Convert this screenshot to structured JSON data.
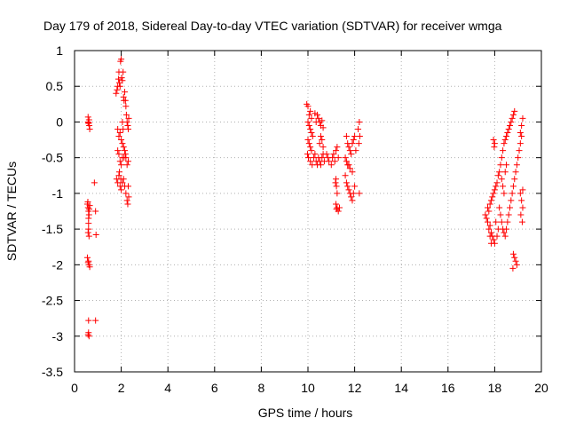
{
  "chart_data": {
    "type": "scatter",
    "title": "Day 179 of 2018, Sidereal Day-to-day VTEC variation (SDTVAR) for receiver wmga",
    "xlabel": "GPS time / hours",
    "ylabel": "SDTVAR / TECUs",
    "xlim": [
      0,
      20
    ],
    "ylim": [
      -3.5,
      1
    ],
    "xticks": [
      "0",
      "2",
      "4",
      "6",
      "8",
      "10",
      "12",
      "14",
      "16",
      "18",
      "20"
    ],
    "yticks": [
      "1",
      "0.5",
      "0",
      "-0.5",
      "-1",
      "-1.5",
      "-2",
      "-2.5",
      "-3",
      "-3.5"
    ],
    "grid": true,
    "marker": "+",
    "color": "#ff0000",
    "series": [
      {
        "name": "SDTVAR",
        "points": [
          [
            0.58,
            0.07
          ],
          [
            0.58,
            0.0
          ],
          [
            0.6,
            -0.02
          ],
          [
            0.62,
            0.03
          ],
          [
            0.63,
            -0.05
          ],
          [
            0.65,
            -0.1
          ],
          [
            0.6,
            -0.01
          ],
          [
            0.55,
            -1.15
          ],
          [
            0.58,
            -1.2
          ],
          [
            0.6,
            -1.25
          ],
          [
            0.62,
            -1.3
          ],
          [
            0.65,
            -1.17
          ],
          [
            0.6,
            -1.35
          ],
          [
            0.57,
            -1.12
          ],
          [
            0.63,
            -1.22
          ],
          [
            0.6,
            -1.42
          ],
          [
            0.6,
            -1.5
          ],
          [
            0.62,
            -1.6
          ],
          [
            0.58,
            -1.55
          ],
          [
            0.55,
            -1.9
          ],
          [
            0.6,
            -1.95
          ],
          [
            0.62,
            -2.0
          ],
          [
            0.65,
            -2.03
          ],
          [
            0.58,
            -1.97
          ],
          [
            0.6,
            -2.78
          ],
          [
            0.6,
            -2.95
          ],
          [
            0.62,
            -3.0
          ],
          [
            0.58,
            -2.98
          ],
          [
            0.9,
            -2.78
          ],
          [
            0.85,
            -0.85
          ],
          [
            0.9,
            -1.25
          ],
          [
            0.92,
            -1.58
          ],
          [
            1.78,
            0.4
          ],
          [
            1.82,
            0.45
          ],
          [
            1.85,
            0.5
          ],
          [
            1.88,
            0.6
          ],
          [
            1.9,
            0.7
          ],
          [
            1.92,
            0.55
          ],
          [
            1.95,
            0.5
          ],
          [
            1.97,
            0.85
          ],
          [
            2.0,
            0.88
          ],
          [
            2.02,
            0.62
          ],
          [
            2.05,
            0.58
          ],
          [
            2.08,
            0.7
          ],
          [
            2.1,
            0.35
          ],
          [
            2.12,
            0.3
          ],
          [
            2.15,
            0.42
          ],
          [
            2.18,
            0.3
          ],
          [
            2.2,
            0.22
          ],
          [
            2.22,
            0.1
          ],
          [
            2.25,
            0.0
          ],
          [
            2.28,
            -0.05
          ],
          [
            2.3,
            -0.1
          ],
          [
            2.32,
            0.05
          ],
          [
            1.85,
            -0.1
          ],
          [
            1.9,
            -0.2
          ],
          [
            1.95,
            -0.15
          ],
          [
            2.0,
            -0.25
          ],
          [
            2.05,
            -0.3
          ],
          [
            2.1,
            -0.35
          ],
          [
            2.15,
            -0.4
          ],
          [
            2.2,
            -0.5
          ],
          [
            2.25,
            -0.6
          ],
          [
            2.3,
            -0.55
          ],
          [
            2.12,
            -0.5
          ],
          [
            2.18,
            -0.45
          ],
          [
            1.85,
            -0.4
          ],
          [
            1.9,
            -0.45
          ],
          [
            1.95,
            -0.55
          ],
          [
            2.0,
            -0.6
          ],
          [
            2.05,
            -0.5
          ],
          [
            1.8,
            -0.8
          ],
          [
            1.85,
            -0.85
          ],
          [
            1.9,
            -0.75
          ],
          [
            1.95,
            -0.9
          ],
          [
            2.0,
            -0.95
          ],
          [
            2.05,
            -0.85
          ],
          [
            2.1,
            -0.8
          ],
          [
            2.15,
            -0.9
          ],
          [
            2.2,
            -1.0
          ],
          [
            2.25,
            -1.1
          ],
          [
            2.28,
            -1.15
          ],
          [
            2.3,
            -0.9
          ],
          [
            2.32,
            -1.05
          ],
          [
            1.92,
            -0.7
          ],
          [
            1.98,
            -0.8
          ],
          [
            2.05,
            0.0
          ],
          [
            2.08,
            -0.1
          ],
          [
            9.95,
            0.25
          ],
          [
            10.0,
            0.22
          ],
          [
            10.05,
            0.1
          ],
          [
            10.1,
            0.15
          ],
          [
            10.15,
            0.05
          ],
          [
            10.0,
            0.0
          ],
          [
            10.05,
            -0.05
          ],
          [
            10.1,
            -0.1
          ],
          [
            10.15,
            -0.15
          ],
          [
            10.2,
            -0.2
          ],
          [
            10.0,
            -0.25
          ],
          [
            10.05,
            -0.3
          ],
          [
            10.1,
            -0.35
          ],
          [
            10.15,
            -0.4
          ],
          [
            9.98,
            -0.45
          ],
          [
            10.02,
            -0.5
          ],
          [
            10.1,
            -0.55
          ],
          [
            10.18,
            -0.6
          ],
          [
            10.25,
            -0.5
          ],
          [
            10.3,
            -0.45
          ],
          [
            10.35,
            -0.55
          ],
          [
            10.4,
            -0.6
          ],
          [
            10.45,
            -0.5
          ],
          [
            10.5,
            -0.55
          ],
          [
            10.55,
            -0.6
          ],
          [
            10.6,
            -0.5
          ],
          [
            10.65,
            -0.45
          ],
          [
            10.7,
            -0.55
          ],
          [
            10.5,
            -0.3
          ],
          [
            10.55,
            -0.2
          ],
          [
            10.6,
            -0.25
          ],
          [
            10.65,
            -0.35
          ],
          [
            10.4,
            0.1
          ],
          [
            10.45,
            0.05
          ],
          [
            10.5,
            0.0
          ],
          [
            10.55,
            -0.05
          ],
          [
            10.6,
            0.02
          ],
          [
            10.65,
            -0.08
          ],
          [
            10.35,
            0.0
          ],
          [
            10.3,
            0.12
          ],
          [
            10.8,
            -0.45
          ],
          [
            10.85,
            -0.5
          ],
          [
            10.9,
            -0.55
          ],
          [
            11.0,
            -0.6
          ],
          [
            11.05,
            -0.5
          ],
          [
            11.1,
            -0.45
          ],
          [
            11.15,
            -0.55
          ],
          [
            11.2,
            -0.4
          ],
          [
            11.25,
            -0.35
          ],
          [
            11.3,
            -0.5
          ],
          [
            11.2,
            -0.8
          ],
          [
            11.22,
            -0.9
          ],
          [
            11.25,
            -1.0
          ],
          [
            11.18,
            -0.85
          ],
          [
            11.2,
            -1.15
          ],
          [
            11.25,
            -1.2
          ],
          [
            11.3,
            -1.25
          ],
          [
            11.35,
            -1.2
          ],
          [
            11.22,
            -1.22
          ],
          [
            11.6,
            -0.5
          ],
          [
            11.65,
            -0.55
          ],
          [
            11.7,
            -0.6
          ],
          [
            11.6,
            -0.75
          ],
          [
            11.65,
            -0.85
          ],
          [
            11.7,
            -0.9
          ],
          [
            11.75,
            -0.95
          ],
          [
            11.8,
            -1.0
          ],
          [
            11.85,
            -1.05
          ],
          [
            11.9,
            -1.1
          ],
          [
            11.95,
            -1.0
          ],
          [
            12.0,
            -0.9
          ],
          [
            11.65,
            -0.2
          ],
          [
            11.7,
            -0.3
          ],
          [
            11.75,
            -0.35
          ],
          [
            11.8,
            -0.4
          ],
          [
            11.85,
            -0.45
          ],
          [
            11.9,
            -0.3
          ],
          [
            11.95,
            -0.25
          ],
          [
            12.0,
            -0.2
          ],
          [
            12.05,
            -0.4
          ],
          [
            11.8,
            -0.65
          ],
          [
            11.9,
            -0.7
          ],
          [
            11.75,
            -0.6
          ],
          [
            12.2,
            0.0
          ],
          [
            12.15,
            -0.1
          ],
          [
            12.22,
            -0.2
          ],
          [
            12.18,
            -0.3
          ],
          [
            12.2,
            -1.0
          ],
          [
            17.6,
            -1.3
          ],
          [
            17.65,
            -1.35
          ],
          [
            17.7,
            -1.4
          ],
          [
            17.75,
            -1.5
          ],
          [
            17.8,
            -1.45
          ],
          [
            17.85,
            -1.55
          ],
          [
            17.9,
            -1.6
          ],
          [
            17.95,
            -1.65
          ],
          [
            18.0,
            -1.7
          ],
          [
            17.7,
            -1.2
          ],
          [
            17.75,
            -1.25
          ],
          [
            17.8,
            -1.15
          ],
          [
            17.85,
            -1.1
          ],
          [
            17.9,
            -1.05
          ],
          [
            17.95,
            -1.0
          ],
          [
            18.0,
            -0.95
          ],
          [
            18.05,
            -0.9
          ],
          [
            18.1,
            -0.85
          ],
          [
            18.15,
            -0.75
          ],
          [
            18.2,
            -0.7
          ],
          [
            18.25,
            -0.6
          ],
          [
            18.3,
            -0.5
          ],
          [
            18.35,
            -0.4
          ],
          [
            18.4,
            -0.3
          ],
          [
            18.45,
            -0.25
          ],
          [
            18.5,
            -0.2
          ],
          [
            18.55,
            -0.15
          ],
          [
            18.6,
            -0.1
          ],
          [
            18.65,
            -0.05
          ],
          [
            18.7,
            0.0
          ],
          [
            18.75,
            0.05
          ],
          [
            18.8,
            0.1
          ],
          [
            18.85,
            0.15
          ],
          [
            18.2,
            -1.2
          ],
          [
            18.25,
            -1.3
          ],
          [
            18.3,
            -1.4
          ],
          [
            18.35,
            -1.5
          ],
          [
            18.4,
            -1.55
          ],
          [
            18.45,
            -1.6
          ],
          [
            18.5,
            -1.5
          ],
          [
            18.55,
            -1.4
          ],
          [
            18.6,
            -1.3
          ],
          [
            18.65,
            -1.2
          ],
          [
            18.7,
            -1.1
          ],
          [
            18.75,
            -1.0
          ],
          [
            18.8,
            -0.9
          ],
          [
            18.85,
            -0.8
          ],
          [
            18.9,
            -0.7
          ],
          [
            18.95,
            -0.6
          ],
          [
            19.0,
            -0.5
          ],
          [
            19.05,
            -0.4
          ],
          [
            19.1,
            -0.3
          ],
          [
            19.15,
            -0.2
          ],
          [
            18.8,
            -1.85
          ],
          [
            18.85,
            -1.9
          ],
          [
            18.9,
            -1.95
          ],
          [
            18.95,
            -2.0
          ],
          [
            18.78,
            -2.05
          ],
          [
            17.95,
            -0.25
          ],
          [
            18.0,
            -0.3
          ],
          [
            17.98,
            -0.35
          ],
          [
            18.3,
            -0.8
          ],
          [
            18.35,
            -0.9
          ],
          [
            18.4,
            -1.0
          ],
          [
            18.45,
            -0.7
          ],
          [
            18.5,
            -0.6
          ],
          [
            19.1,
            -1.0
          ],
          [
            19.15,
            -1.1
          ],
          [
            19.2,
            -1.2
          ],
          [
            19.12,
            -1.3
          ],
          [
            19.18,
            -1.4
          ],
          [
            19.2,
            0.05
          ],
          [
            19.15,
            -0.05
          ],
          [
            19.1,
            -0.15
          ],
          [
            19.2,
            -0.95
          ],
          [
            17.8,
            -1.6
          ],
          [
            17.85,
            -1.7
          ],
          [
            18.1,
            -1.6
          ],
          [
            18.15,
            -1.5
          ],
          [
            18.05,
            -1.4
          ]
        ]
      }
    ]
  }
}
